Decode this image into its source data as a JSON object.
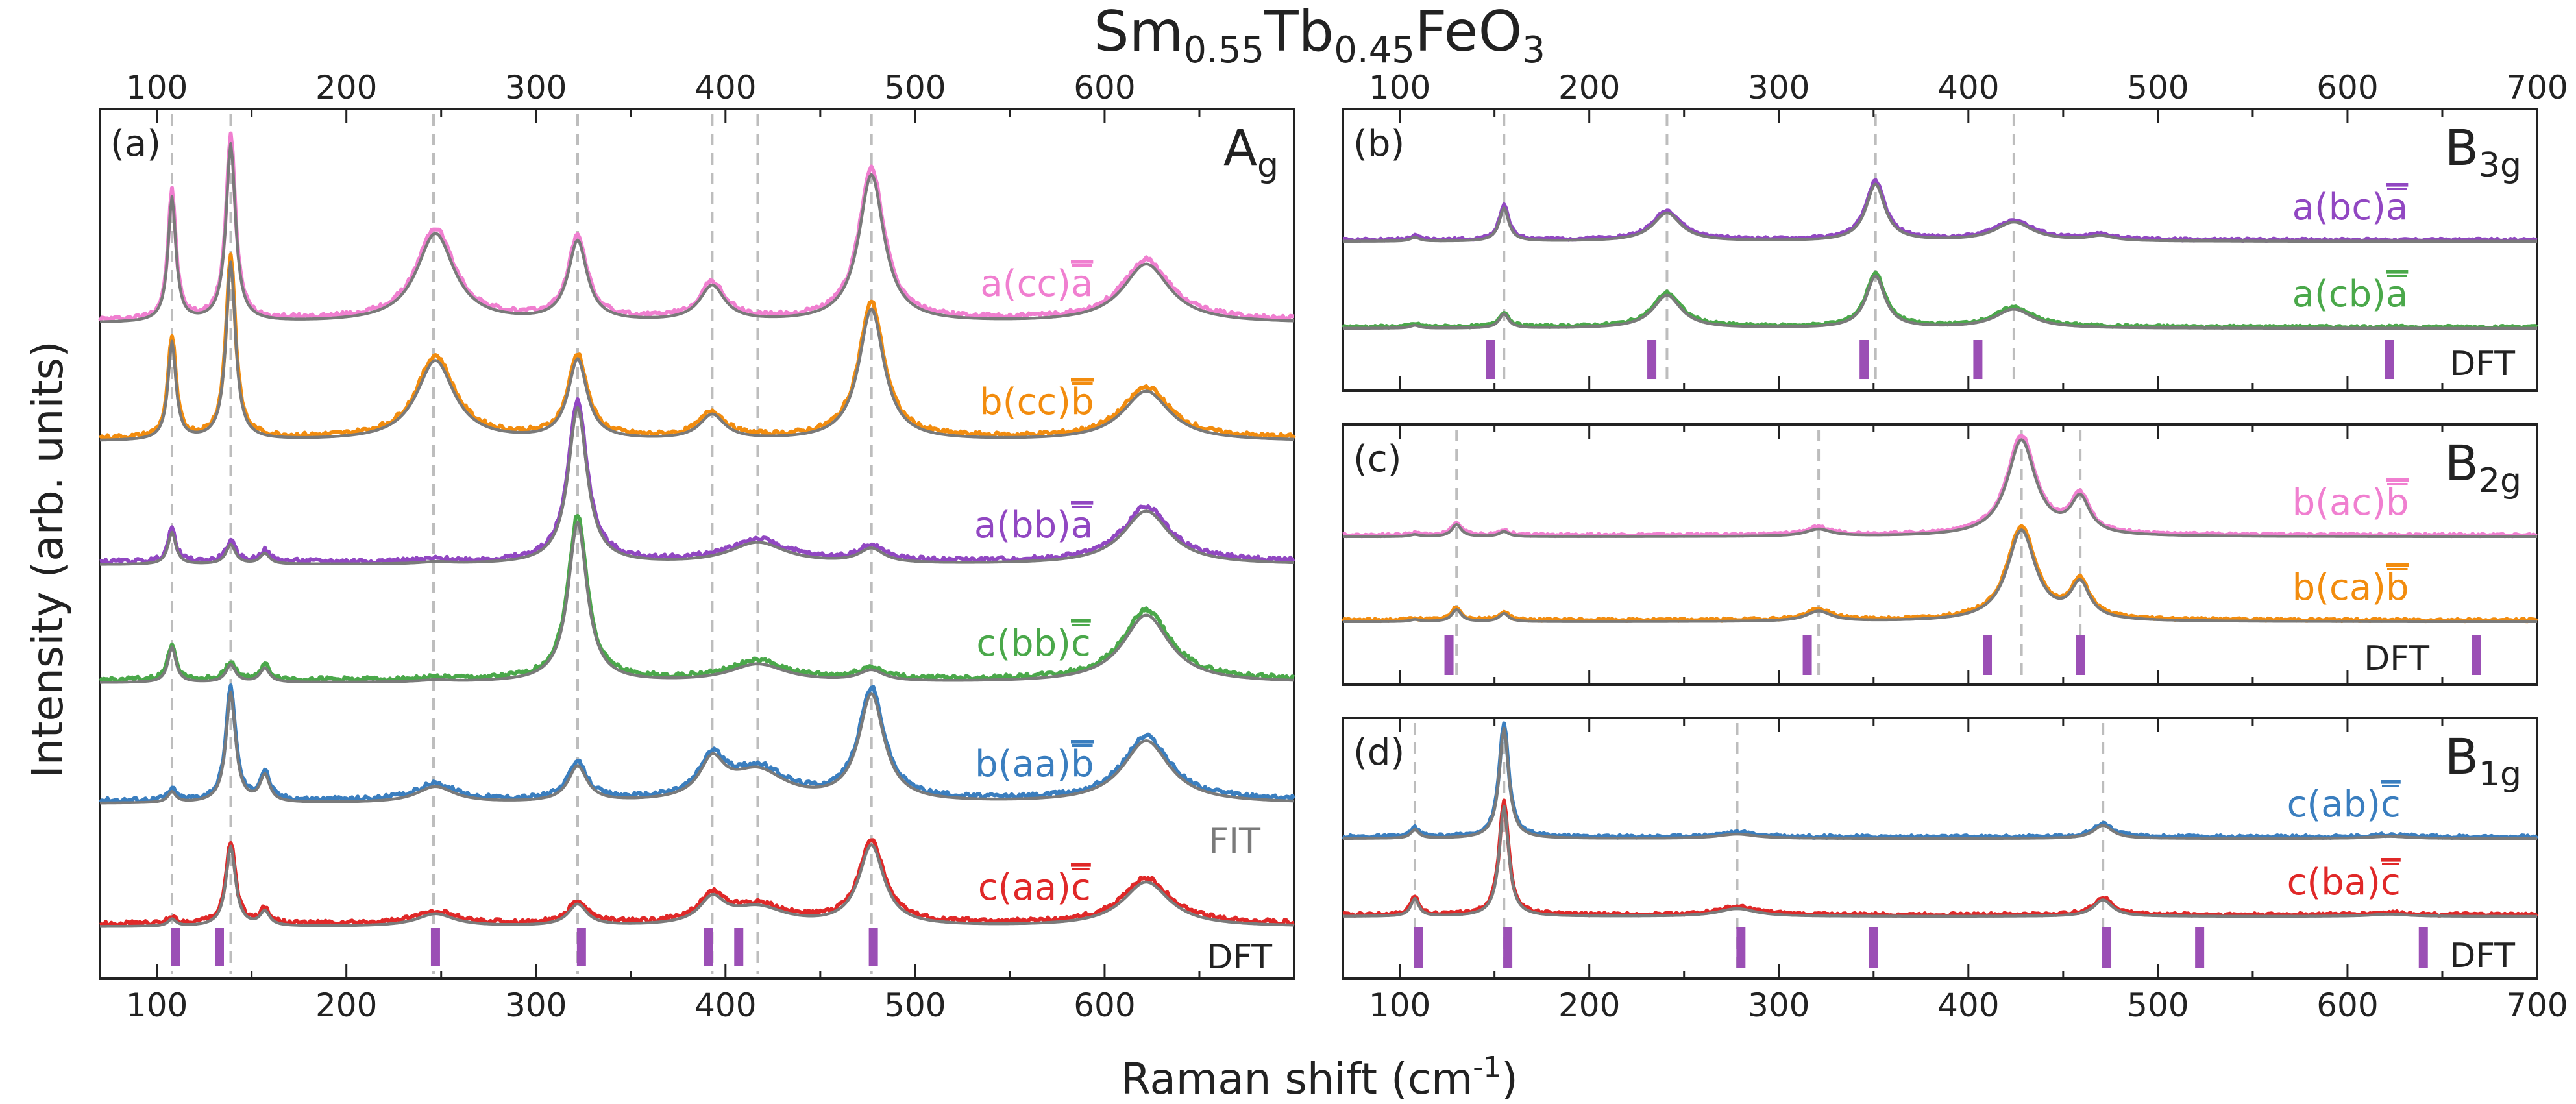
{
  "figure_title": {
    "main": "Sm",
    "s1": "0.55",
    "el2": "Tb",
    "s2": "0.45",
    "rest": "FeO",
    "s3": "3"
  },
  "x_axis_label": {
    "main": "Raman shift (cm",
    "sup": "-1",
    "close": ")"
  },
  "y_axis_label": "Intensity (arb. units)",
  "colors": {
    "pink": "#f07fd0",
    "orange": "#f28c0e",
    "purple": "#9147c2",
    "green": "#4aa84a",
    "blue": "#3a7ebf",
    "red": "#e02828",
    "fit": "#7a7a7a",
    "dft": "#9b4fb5",
    "guide": "#bdbdbd"
  },
  "chart_data": [
    {
      "panel_label": "(a)",
      "mode": {
        "base": "A",
        "sub": "g"
      },
      "type": "line",
      "xlim": [
        70,
        700
      ],
      "top_ticks": [
        100,
        200,
        300,
        400,
        500,
        600
      ],
      "bottom_ticks": [
        100,
        200,
        300,
        400,
        500,
        600
      ],
      "guide_lines": [
        108,
        139,
        246,
        322,
        393,
        417,
        477
      ],
      "dft_marks": [
        110,
        133,
        247,
        324,
        391,
        407,
        478
      ],
      "dft_label": "DFT",
      "fit_label": "FIT",
      "series": [
        {
          "name": "a(cc)",
          "bar": "a",
          "color": "pink",
          "fit": true,
          "peaks": [
            [
              108,
              0.7,
              2.5
            ],
            [
              139,
              1.0,
              3
            ],
            [
              247,
              0.5,
              12
            ],
            [
              322,
              0.45,
              6
            ],
            [
              393,
              0.2,
              8
            ],
            [
              477,
              0.83,
              8
            ],
            [
              622,
              0.33,
              15
            ]
          ]
        },
        {
          "name": "b(cc)",
          "bar": "b",
          "color": "orange",
          "fit": true,
          "peaks": [
            [
              108,
              0.55,
              2.5
            ],
            [
              139,
              1.0,
              3
            ],
            [
              247,
              0.45,
              12
            ],
            [
              322,
              0.45,
              6
            ],
            [
              393,
              0.14,
              8
            ],
            [
              477,
              0.74,
              8
            ],
            [
              622,
              0.28,
              15
            ]
          ]
        },
        {
          "name": "a(bb)",
          "bar": "a",
          "color": "purple",
          "fit": true,
          "peaks": [
            [
              108,
              0.18,
              2.5
            ],
            [
              139,
              0.11,
              3
            ],
            [
              157,
              0.06,
              3
            ],
            [
              247,
              0.01,
              10
            ],
            [
              322,
              0.88,
              6
            ],
            [
              417,
              0.12,
              18
            ],
            [
              477,
              0.08,
              8
            ],
            [
              622,
              0.3,
              15
            ]
          ]
        },
        {
          "name": "c(bb)",
          "bar": "c",
          "color": "green",
          "fit": true,
          "peaks": [
            [
              108,
              0.2,
              2.5
            ],
            [
              139,
              0.1,
              3
            ],
            [
              157,
              0.08,
              3
            ],
            [
              247,
              0.01,
              10
            ],
            [
              322,
              0.9,
              6
            ],
            [
              417,
              0.1,
              18
            ],
            [
              477,
              0.06,
              8
            ],
            [
              622,
              0.38,
              15
            ]
          ]
        },
        {
          "name": "b(aa)",
          "bar": "b",
          "color": "blue",
          "fit": true,
          "peaks": [
            [
              108,
              0.06,
              2.5
            ],
            [
              139,
              0.62,
              3
            ],
            [
              157,
              0.15,
              3
            ],
            [
              247,
              0.09,
              12
            ],
            [
              322,
              0.2,
              6
            ],
            [
              393,
              0.21,
              8
            ],
            [
              417,
              0.17,
              18
            ],
            [
              477,
              0.6,
              8
            ],
            [
              622,
              0.35,
              15
            ]
          ]
        },
        {
          "name": "c(aa)",
          "bar": "c",
          "color": "red",
          "fit": true,
          "peaks": [
            [
              108,
              0.04,
              2.5
            ],
            [
              139,
              0.45,
              3
            ],
            [
              157,
              0.08,
              3
            ],
            [
              247,
              0.07,
              12
            ],
            [
              322,
              0.12,
              6
            ],
            [
              393,
              0.14,
              8
            ],
            [
              417,
              0.1,
              18
            ],
            [
              477,
              0.45,
              8
            ],
            [
              622,
              0.25,
              15
            ]
          ]
        }
      ]
    },
    {
      "panel_label": "(b)",
      "mode": {
        "base": "B",
        "sub": "3g"
      },
      "type": "line",
      "xlim": [
        70,
        700
      ],
      "top_ticks": [
        100,
        200,
        300,
        400,
        500,
        600,
        700
      ],
      "bottom_ticks": [],
      "guide_lines": [
        155,
        241,
        351,
        424
      ],
      "dft_marks": [
        148,
        233,
        345,
        405,
        622
      ],
      "dft_label": "DFT",
      "series": [
        {
          "name": "a(bc)",
          "bar": "a",
          "color": "purple",
          "fit": true,
          "peaks": [
            [
              108,
              0.04,
              3
            ],
            [
              155,
              0.35,
              3
            ],
            [
              241,
              0.3,
              9
            ],
            [
              351,
              0.6,
              6
            ],
            [
              424,
              0.2,
              12
            ],
            [
              470,
              0.05,
              8
            ]
          ]
        },
        {
          "name": "a(cb)",
          "bar": "a",
          "color": "green",
          "fit": true,
          "peaks": [
            [
              108,
              0.03,
              3
            ],
            [
              155,
              0.15,
              3
            ],
            [
              241,
              0.35,
              9
            ],
            [
              351,
              0.55,
              6
            ],
            [
              424,
              0.2,
              12
            ]
          ]
        }
      ]
    },
    {
      "panel_label": "(c)",
      "mode": {
        "base": "B",
        "sub": "2g"
      },
      "type": "line",
      "xlim": [
        70,
        700
      ],
      "top_ticks": [],
      "bottom_ticks": [],
      "guide_lines": [
        130,
        321,
        428,
        459
      ],
      "dft_marks": [
        126,
        315,
        410,
        459,
        668
      ],
      "dft_label": "DFT",
      "series": [
        {
          "name": "b(ac)",
          "bar": "b",
          "color": "pink",
          "fit": true,
          "peaks": [
            [
              108,
              0.02,
              3
            ],
            [
              130,
              0.12,
              3
            ],
            [
              155,
              0.05,
              3
            ],
            [
              321,
              0.07,
              8
            ],
            [
              428,
              0.95,
              9
            ],
            [
              459,
              0.35,
              6
            ]
          ]
        },
        {
          "name": "b(ca)",
          "bar": "b",
          "color": "orange",
          "fit": true,
          "peaks": [
            [
              108,
              0.02,
              3
            ],
            [
              130,
              0.12,
              3
            ],
            [
              155,
              0.08,
              3
            ],
            [
              321,
              0.1,
              8
            ],
            [
              428,
              0.9,
              9
            ],
            [
              459,
              0.35,
              6
            ]
          ]
        }
      ]
    },
    {
      "panel_label": "(d)",
      "mode": {
        "base": "B",
        "sub": "1g"
      },
      "type": "line",
      "xlim": [
        70,
        700
      ],
      "top_ticks": [],
      "bottom_ticks": [
        100,
        200,
        300,
        400,
        500,
        600,
        700
      ],
      "guide_lines": [
        108,
        155,
        278,
        471
      ],
      "dft_marks": [
        110,
        157,
        280,
        350,
        473,
        522,
        640
      ],
      "dft_label": "DFT",
      "series": [
        {
          "name": "c(ab)",
          "bar": "c",
          "color": "blue",
          "fit": true,
          "peaks": [
            [
              108,
              0.08,
              2.5
            ],
            [
              155,
              1.0,
              3
            ],
            [
              278,
              0.04,
              12
            ],
            [
              471,
              0.12,
              6
            ],
            [
              622,
              0.02,
              12
            ]
          ]
        },
        {
          "name": "c(ba)",
          "bar": "c",
          "color": "red",
          "fit": true,
          "peaks": [
            [
              108,
              0.16,
              2.5
            ],
            [
              155,
              1.0,
              3
            ],
            [
              278,
              0.07,
              12
            ],
            [
              471,
              0.15,
              6
            ],
            [
              622,
              0.02,
              12
            ]
          ]
        }
      ]
    }
  ]
}
